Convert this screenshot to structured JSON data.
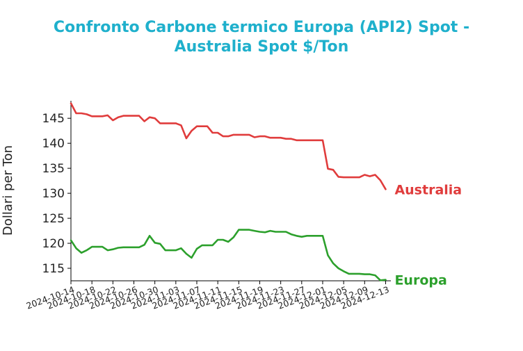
{
  "chart_data": {
    "type": "line",
    "title": "Confronto Carbone termico Europa (API2) Spot - Australia Spot $/Ton",
    "title_lines": [
      "Confronto Carbone termico Europa (API2) Spot -",
      "Australia Spot $/Ton"
    ],
    "title_color": "#1fb0cc",
    "xlabel": "",
    "ylabel": "Dollari per Ton",
    "ylim": [
      112.5,
      148.5
    ],
    "yticks": [
      115,
      120,
      125,
      130,
      135,
      140,
      145
    ],
    "xlim": [
      "2024-10-14",
      "2024-12-14"
    ],
    "xticks": [
      "2024-10-14",
      "2024-10-18",
      "2024-10-22",
      "2024-10-26",
      "2024-10-30",
      "2024-11-03",
      "2024-11-07",
      "2024-11-11",
      "2024-11-15",
      "2024-11-19",
      "2024-11-23",
      "2024-11-27",
      "2024-12-01",
      "2024-12-05",
      "2024-12-09",
      "2024-12-13"
    ],
    "grid": false,
    "legend": "inline-right",
    "series": [
      {
        "name": "Australia",
        "color": "#e03c3c",
        "x": [
          "2024-10-14",
          "2024-10-15",
          "2024-10-16",
          "2024-10-17",
          "2024-10-18",
          "2024-10-19",
          "2024-10-20",
          "2024-10-21",
          "2024-10-22",
          "2024-10-23",
          "2024-10-24",
          "2024-10-25",
          "2024-10-26",
          "2024-10-27",
          "2024-10-28",
          "2024-10-29",
          "2024-10-30",
          "2024-10-31",
          "2024-11-01",
          "2024-11-02",
          "2024-11-03",
          "2024-11-04",
          "2024-11-05",
          "2024-11-06",
          "2024-11-07",
          "2024-11-08",
          "2024-11-09",
          "2024-11-10",
          "2024-11-11",
          "2024-11-12",
          "2024-11-13",
          "2024-11-14",
          "2024-11-15",
          "2024-11-16",
          "2024-11-17",
          "2024-11-18",
          "2024-11-19",
          "2024-11-20",
          "2024-11-21",
          "2024-11-22",
          "2024-11-23",
          "2024-11-24",
          "2024-11-25",
          "2024-11-26",
          "2024-11-27",
          "2024-11-28",
          "2024-11-29",
          "2024-11-30",
          "2024-12-01",
          "2024-12-02",
          "2024-12-03",
          "2024-12-04",
          "2024-12-05",
          "2024-12-06",
          "2024-12-07",
          "2024-12-08",
          "2024-12-09",
          "2024-12-10",
          "2024-12-11",
          "2024-12-12",
          "2024-12-13"
        ],
        "values": [
          148.0,
          146.0,
          146.0,
          145.8,
          145.4,
          145.4,
          145.4,
          145.6,
          144.6,
          145.2,
          145.5,
          145.5,
          145.5,
          145.5,
          144.4,
          145.2,
          145.0,
          144.0,
          144.0,
          144.0,
          144.0,
          143.6,
          141.0,
          142.5,
          143.4,
          143.4,
          143.4,
          142.1,
          142.1,
          141.4,
          141.4,
          141.7,
          141.7,
          141.7,
          141.7,
          141.2,
          141.4,
          141.4,
          141.1,
          141.1,
          141.1,
          140.9,
          140.9,
          140.6,
          140.6,
          140.6,
          140.6,
          140.6,
          140.6,
          134.9,
          134.7,
          133.3,
          133.2,
          133.2,
          133.2,
          133.2,
          133.7,
          133.4,
          133.7,
          132.6,
          130.8
        ]
      },
      {
        "name": "Europa",
        "color": "#2ca02c",
        "x": [
          "2024-10-14",
          "2024-10-15",
          "2024-10-16",
          "2024-10-17",
          "2024-10-18",
          "2024-10-19",
          "2024-10-20",
          "2024-10-21",
          "2024-10-22",
          "2024-10-23",
          "2024-10-24",
          "2024-10-25",
          "2024-10-26",
          "2024-10-27",
          "2024-10-28",
          "2024-10-29",
          "2024-10-30",
          "2024-10-31",
          "2024-11-01",
          "2024-11-02",
          "2024-11-03",
          "2024-11-04",
          "2024-11-05",
          "2024-11-06",
          "2024-11-07",
          "2024-11-08",
          "2024-11-09",
          "2024-11-10",
          "2024-11-11",
          "2024-11-12",
          "2024-11-13",
          "2024-11-14",
          "2024-11-15",
          "2024-11-16",
          "2024-11-17",
          "2024-11-18",
          "2024-11-19",
          "2024-11-20",
          "2024-11-21",
          "2024-11-22",
          "2024-11-23",
          "2024-11-24",
          "2024-11-25",
          "2024-11-26",
          "2024-11-27",
          "2024-11-28",
          "2024-11-29",
          "2024-11-30",
          "2024-12-01",
          "2024-12-02",
          "2024-12-03",
          "2024-12-04",
          "2024-12-05",
          "2024-12-06",
          "2024-12-07",
          "2024-12-08",
          "2024-12-09",
          "2024-12-10",
          "2024-12-11",
          "2024-12-12",
          "2024-12-13"
        ],
        "values": [
          120.6,
          119.0,
          118.1,
          118.6,
          119.3,
          119.3,
          119.3,
          118.6,
          118.8,
          119.1,
          119.2,
          119.2,
          119.2,
          119.2,
          119.7,
          121.5,
          120.1,
          119.9,
          118.6,
          118.6,
          118.6,
          119.0,
          117.9,
          117.1,
          118.9,
          119.6,
          119.6,
          119.6,
          120.7,
          120.7,
          120.3,
          121.2,
          122.7,
          122.7,
          122.7,
          122.5,
          122.3,
          122.2,
          122.5,
          122.3,
          122.3,
          122.3,
          121.8,
          121.5,
          121.3,
          121.5,
          121.5,
          121.5,
          121.5,
          117.6,
          116.0,
          115.0,
          114.4,
          113.9,
          113.9,
          113.9,
          113.8,
          113.8,
          113.6,
          112.6,
          112.7
        ]
      }
    ]
  }
}
